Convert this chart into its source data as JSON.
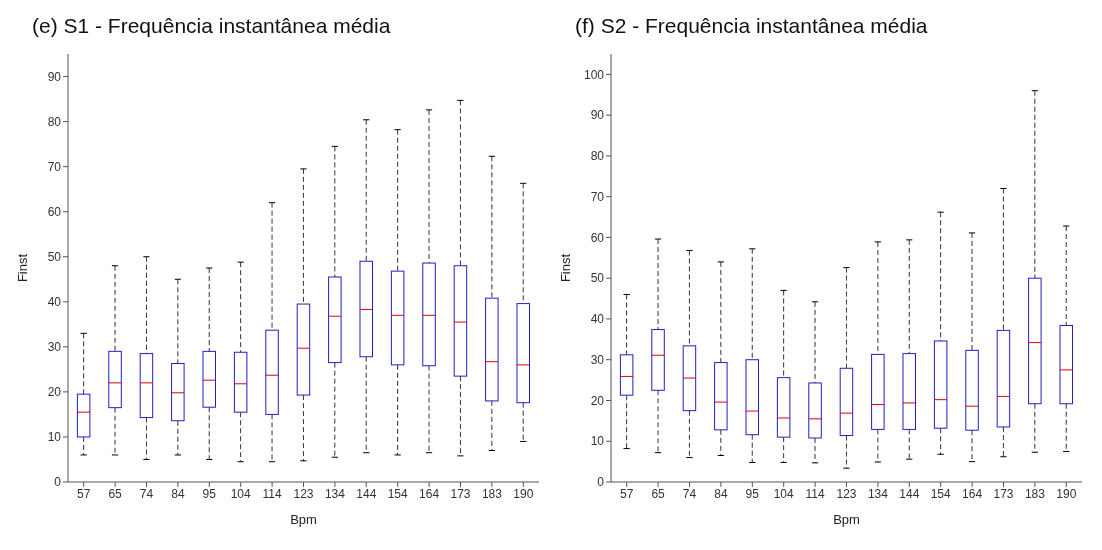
{
  "chart_data": [
    {
      "type": "box",
      "title": "(e) S1 - Frequência instantânea média",
      "xlabel": "Bpm",
      "ylabel": "Finst",
      "categories": [
        "57",
        "65",
        "74",
        "84",
        "95",
        "104",
        "114",
        "123",
        "134",
        "144",
        "154",
        "164",
        "173",
        "183",
        "190"
      ],
      "ylim": [
        0,
        95
      ],
      "yticks": [
        0,
        10,
        20,
        30,
        40,
        50,
        60,
        70,
        80,
        90
      ],
      "grid": false,
      "series": [
        {
          "color": "#2020c0",
          "boxes": [
            {
              "low": 6,
              "q1": 10,
              "median": 15.5,
              "q3": 19.5,
              "high": 33
            },
            {
              "low": 6,
              "q1": 16.5,
              "median": 22,
              "q3": 29,
              "high": 48
            },
            {
              "low": 5,
              "q1": 14.3,
              "median": 22,
              "q3": 28.5,
              "high": 50
            },
            {
              "low": 6,
              "q1": 13.6,
              "median": 19.8,
              "q3": 26.3,
              "high": 45
            },
            {
              "low": 5,
              "q1": 16.6,
              "median": 22.6,
              "q3": 29,
              "high": 47.5
            },
            {
              "low": 4.5,
              "q1": 15.5,
              "median": 21.8,
              "q3": 28.8,
              "high": 48.8
            },
            {
              "low": 4.5,
              "q1": 15,
              "median": 23.7,
              "q3": 33.7,
              "high": 62
            },
            {
              "low": 4.7,
              "q1": 19.3,
              "median": 29.7,
              "q3": 39.5,
              "high": 69.5
            },
            {
              "low": 5.5,
              "q1": 26.5,
              "median": 36.8,
              "q3": 45.5,
              "high": 74.5
            },
            {
              "low": 6.5,
              "q1": 27.8,
              "median": 38.3,
              "q3": 49,
              "high": 80.4
            },
            {
              "low": 6,
              "q1": 26,
              "median": 37,
              "q3": 46.8,
              "high": 78.2
            },
            {
              "low": 6.5,
              "q1": 25.8,
              "median": 37,
              "q3": 48.6,
              "high": 82.6
            },
            {
              "low": 5.8,
              "q1": 23.5,
              "median": 35.5,
              "q3": 48,
              "high": 84.7
            },
            {
              "low": 7,
              "q1": 18,
              "median": 26.7,
              "q3": 40.8,
              "high": 72.3
            },
            {
              "low": 9,
              "q1": 17.6,
              "median": 26,
              "q3": 39.6,
              "high": 66.3
            }
          ]
        }
      ]
    },
    {
      "type": "box",
      "title": "(f) S2 - Frequência instantânea média",
      "xlabel": "Bpm",
      "ylabel": "Finst",
      "categories": [
        "57",
        "65",
        "74",
        "84",
        "95",
        "104",
        "114",
        "123",
        "134",
        "144",
        "154",
        "164",
        "173",
        "183",
        "190"
      ],
      "ylim": [
        0,
        105
      ],
      "yticks": [
        0,
        10,
        20,
        30,
        40,
        50,
        60,
        70,
        80,
        90,
        100
      ],
      "grid": false,
      "series": [
        {
          "color": "#2020c0",
          "boxes": [
            {
              "low": 8.2,
              "q1": 21.3,
              "median": 25.9,
              "q3": 31.2,
              "high": 46
            },
            {
              "low": 7.2,
              "q1": 22.5,
              "median": 31.1,
              "q3": 37.4,
              "high": 59.6
            },
            {
              "low": 6,
              "q1": 17.5,
              "median": 25.5,
              "q3": 33.4,
              "high": 56.8
            },
            {
              "low": 6.5,
              "q1": 12.8,
              "median": 19.6,
              "q3": 29.3,
              "high": 54
            },
            {
              "low": 4.8,
              "q1": 11.6,
              "median": 17.4,
              "q3": 30,
              "high": 57.2
            },
            {
              "low": 4.8,
              "q1": 11,
              "median": 15.7,
              "q3": 25.6,
              "high": 47
            },
            {
              "low": 4.7,
              "q1": 10.8,
              "median": 15.5,
              "q3": 24.3,
              "high": 44.2
            },
            {
              "low": 3.4,
              "q1": 11.4,
              "median": 16.9,
              "q3": 27.9,
              "high": 52.6
            },
            {
              "low": 4.9,
              "q1": 12.9,
              "median": 19,
              "q3": 31.3,
              "high": 58.9
            },
            {
              "low": 5.6,
              "q1": 12.9,
              "median": 19.4,
              "q3": 31.5,
              "high": 59.4
            },
            {
              "low": 6.8,
              "q1": 13.2,
              "median": 20.2,
              "q3": 34.6,
              "high": 66.2
            },
            {
              "low": 5,
              "q1": 12.7,
              "median": 18.6,
              "q3": 32.3,
              "high": 61.1
            },
            {
              "low": 6.2,
              "q1": 13.5,
              "median": 21,
              "q3": 37.2,
              "high": 72
            },
            {
              "low": 7.3,
              "q1": 19.2,
              "median": 34.2,
              "q3": 50,
              "high": 96
            },
            {
              "low": 7.5,
              "q1": 19.2,
              "median": 27.5,
              "q3": 38.4,
              "high": 62.8
            }
          ]
        }
      ]
    }
  ]
}
